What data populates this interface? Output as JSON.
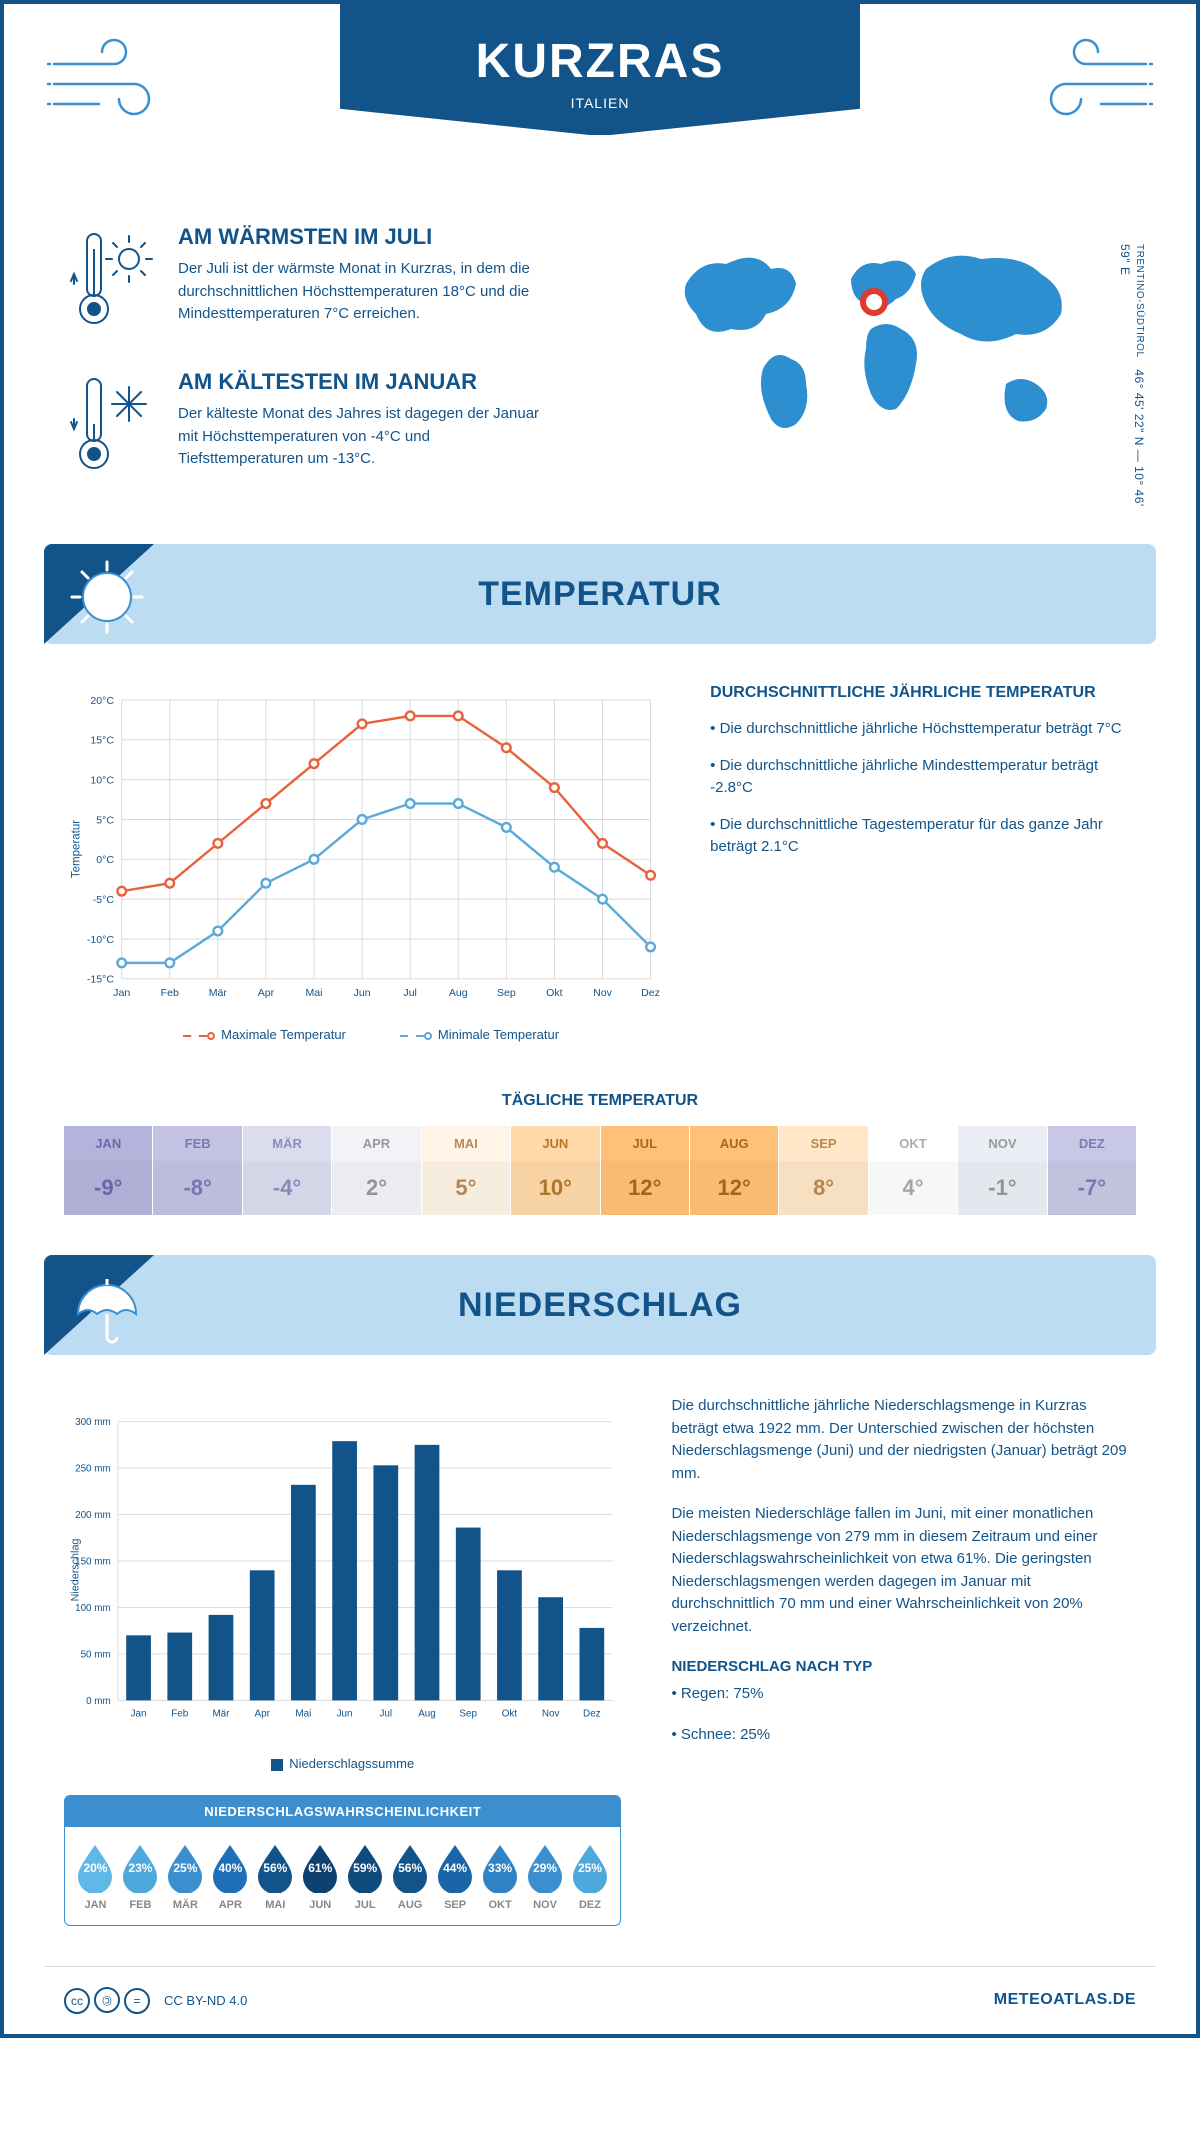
{
  "colors": {
    "primary": "#12548a",
    "accent": "#3b8fcf",
    "light_blue": "#bcdcf2",
    "orange": "#e8613b",
    "line_blue": "#5aa8dc",
    "grid": "#d8d8d8",
    "white": "#ffffff",
    "marker_red": "#e03a2f"
  },
  "header": {
    "title": "KURZRAS",
    "subtitle": "ITALIEN"
  },
  "coords": {
    "region": "TRENTINO-SÜDTIROL",
    "text": "46° 45' 22\" N — 10° 46' 59\" E"
  },
  "facts": {
    "warm": {
      "title": "AM WÄRMSTEN IM JULI",
      "text": "Der Juli ist der wärmste Monat in Kurzras, in dem die durchschnittlichen Höchsttemperaturen 18°C und die Mindesttemperaturen 7°C erreichen."
    },
    "cold": {
      "title": "AM KÄLTESTEN IM JANUAR",
      "text": "Der kälteste Monat des Jahres ist dagegen der Januar mit Höchsttemperaturen von -4°C und Tiefsttemperaturen um -13°C."
    }
  },
  "temp_section": {
    "title": "TEMPERATUR",
    "chart": {
      "type": "line",
      "months": [
        "Jan",
        "Feb",
        "Mär",
        "Apr",
        "Mai",
        "Jun",
        "Jul",
        "Aug",
        "Sep",
        "Okt",
        "Nov",
        "Dez"
      ],
      "y_min": -15,
      "y_max": 20,
      "y_step": 5,
      "y_label": "Temperatur",
      "series": [
        {
          "name": "Maximale Temperatur",
          "color": "#e8613b",
          "values": [
            -4,
            -3,
            2,
            7,
            12,
            17,
            18,
            18,
            14,
            9,
            2,
            -2
          ]
        },
        {
          "name": "Minimale Temperatur",
          "color": "#5aa8dc",
          "values": [
            -13,
            -13,
            -9,
            -3,
            0,
            5,
            7,
            7,
            4,
            -1,
            -5,
            -11
          ]
        }
      ]
    },
    "notes": {
      "title": "DURCHSCHNITTLICHE JÄHRLICHE TEMPERATUR",
      "bullets": [
        "• Die durchschnittliche jährliche Höchsttemperatur beträgt 7°C",
        "• Die durchschnittliche jährliche Mindesttemperatur beträgt -2.8°C",
        "• Die durchschnittliche Tagestemperatur für das ganze Jahr beträgt 2.1°C"
      ]
    },
    "daily": {
      "title": "TÄGLICHE TEMPERATUR",
      "cells": [
        {
          "m": "JAN",
          "v": "-9°",
          "bg": "#b4b3db",
          "fg": "#6b6aa8"
        },
        {
          "m": "FEB",
          "v": "-8°",
          "bg": "#c3c2e3",
          "fg": "#7a79b3"
        },
        {
          "m": "MÄR",
          "v": "-4°",
          "bg": "#dcdcef",
          "fg": "#8d8cbf"
        },
        {
          "m": "APR",
          "v": "2°",
          "bg": "#f2f2f7",
          "fg": "#999"
        },
        {
          "m": "MAI",
          "v": "5°",
          "bg": "#fff4e6",
          "fg": "#b78b58"
        },
        {
          "m": "JUN",
          "v": "10°",
          "bg": "#ffd9a8",
          "fg": "#b37a2e"
        },
        {
          "m": "JUL",
          "v": "12°",
          "bg": "#ffc178",
          "fg": "#a8681a"
        },
        {
          "m": "AUG",
          "v": "12°",
          "bg": "#ffc178",
          "fg": "#a8681a"
        },
        {
          "m": "SEP",
          "v": "8°",
          "bg": "#ffe7c8",
          "fg": "#b88a4e"
        },
        {
          "m": "OKT",
          "v": "4°",
          "bg": "#ffffff",
          "fg": "#aaa"
        },
        {
          "m": "NOV",
          "v": "-1°",
          "bg": "#eceef6",
          "fg": "#999"
        },
        {
          "m": "DEZ",
          "v": "-7°",
          "bg": "#c8c7e5",
          "fg": "#7d7cb5"
        }
      ]
    }
  },
  "precip_section": {
    "title": "NIEDERSCHLAG",
    "chart": {
      "type": "bar",
      "months": [
        "Jan",
        "Feb",
        "Mär",
        "Apr",
        "Mai",
        "Jun",
        "Jul",
        "Aug",
        "Sep",
        "Okt",
        "Nov",
        "Dez"
      ],
      "y_min": 0,
      "y_max": 300,
      "y_step": 50,
      "y_label": "Niederschlag",
      "bar_color": "#12548a",
      "values": [
        70,
        73,
        92,
        140,
        232,
        279,
        253,
        275,
        186,
        140,
        111,
        78
      ],
      "legend": "Niederschlagssumme"
    },
    "notes": {
      "p1": "Die durchschnittliche jährliche Niederschlagsmenge in Kurzras beträgt etwa 1922 mm. Der Unterschied zwischen der höchsten Niederschlagsmenge (Juni) und der niedrigsten (Januar) beträgt 209 mm.",
      "p2": "Die meisten Niederschläge fallen im Juni, mit einer monatlichen Niederschlagsmenge von 279 mm in diesem Zeitraum und einer Niederschlagswahrscheinlichkeit von etwa 61%. Die geringsten Niederschlagsmengen werden dagegen im Januar mit durchschnittlich 70 mm und einer Wahrscheinlichkeit von 20% verzeichnet.",
      "type_title": "NIEDERSCHLAG NACH TYP",
      "type_items": [
        "• Regen: 75%",
        "• Schnee: 25%"
      ]
    },
    "prob": {
      "title": "NIEDERSCHLAGSWAHRSCHEINLICHKEIT",
      "cells": [
        {
          "m": "JAN",
          "p": "20%",
          "c": "#5fb8e8"
        },
        {
          "m": "FEB",
          "p": "23%",
          "c": "#4fa8dc"
        },
        {
          "m": "MÄR",
          "p": "25%",
          "c": "#3b8fcf"
        },
        {
          "m": "APR",
          "p": "40%",
          "c": "#1f6fb8"
        },
        {
          "m": "MAI",
          "p": "56%",
          "c": "#12548a"
        },
        {
          "m": "JUN",
          "p": "61%",
          "c": "#0d4270"
        },
        {
          "m": "JUL",
          "p": "59%",
          "c": "#0f4a7c"
        },
        {
          "m": "AUG",
          "p": "56%",
          "c": "#12548a"
        },
        {
          "m": "SEP",
          "p": "44%",
          "c": "#1a64a8"
        },
        {
          "m": "OKT",
          "p": "33%",
          "c": "#2e82c5"
        },
        {
          "m": "NOV",
          "p": "29%",
          "c": "#3b8fcf"
        },
        {
          "m": "DEZ",
          "p": "25%",
          "c": "#4fa8dc"
        }
      ]
    }
  },
  "footer": {
    "license": "CC BY-ND 4.0",
    "brand": "METEOATLAS.DE"
  }
}
